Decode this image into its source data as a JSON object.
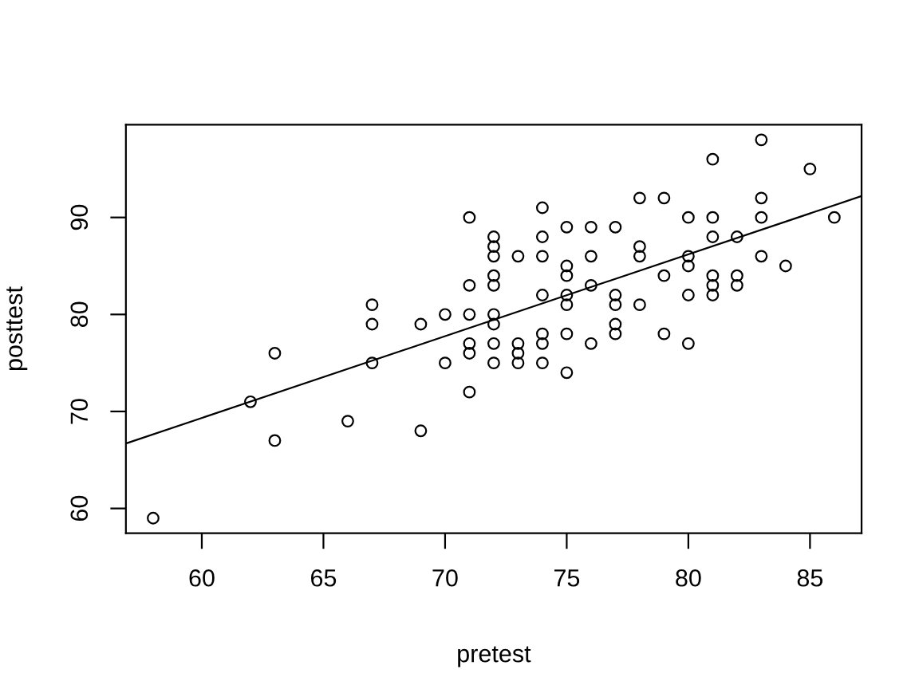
{
  "chart_data": {
    "type": "scatter",
    "xlabel": "pretest",
    "ylabel": "posttest",
    "xlim": [
      56.88,
      87.12
    ],
    "ylim": [
      57.44,
      99.56
    ],
    "xticks": [
      60,
      65,
      70,
      75,
      80,
      85
    ],
    "yticks": [
      60,
      70,
      80,
      90
    ],
    "marker": "circle",
    "series": [
      {
        "color": "#000000",
        "x": [
          58,
          62,
          63,
          63,
          66,
          67,
          67,
          67,
          69,
          69,
          70,
          70,
          71,
          71,
          71,
          71,
          71,
          71,
          72,
          72,
          72,
          72,
          72,
          72,
          72,
          72,
          72,
          73,
          73,
          73,
          73,
          74,
          74,
          74,
          74,
          74,
          74,
          74,
          75,
          75,
          75,
          75,
          75,
          75,
          75,
          76,
          76,
          76,
          76,
          77,
          77,
          77,
          77,
          77,
          78,
          78,
          78,
          78,
          79,
          79,
          79,
          80,
          80,
          80,
          80,
          80,
          81,
          81,
          81,
          81,
          81,
          81,
          82,
          82,
          82,
          83,
          83,
          83,
          83,
          84,
          85,
          86
        ],
        "values": [
          59,
          71,
          76,
          67,
          69,
          81,
          79,
          75,
          79,
          68,
          80,
          75,
          90,
          83,
          80,
          77,
          76,
          72,
          88,
          87,
          86,
          84,
          83,
          80,
          79,
          77,
          75,
          86,
          77,
          76,
          75,
          91,
          88,
          86,
          82,
          78,
          77,
          75,
          89,
          85,
          84,
          82,
          81,
          78,
          74,
          89,
          86,
          83,
          77,
          89,
          82,
          81,
          79,
          78,
          92,
          87,
          86,
          81,
          92,
          84,
          78,
          90,
          86,
          85,
          82,
          77,
          96,
          90,
          88,
          84,
          83,
          82,
          88,
          84,
          83,
          98,
          92,
          90,
          86,
          85,
          95,
          90
        ]
      },
      {
        "type": "line",
        "color": "#000000",
        "marker": "none",
        "line_style": "solid",
        "x": [
          56.88,
          87.12
        ],
        "values": [
          66.7,
          92.2
        ]
      }
    ]
  }
}
